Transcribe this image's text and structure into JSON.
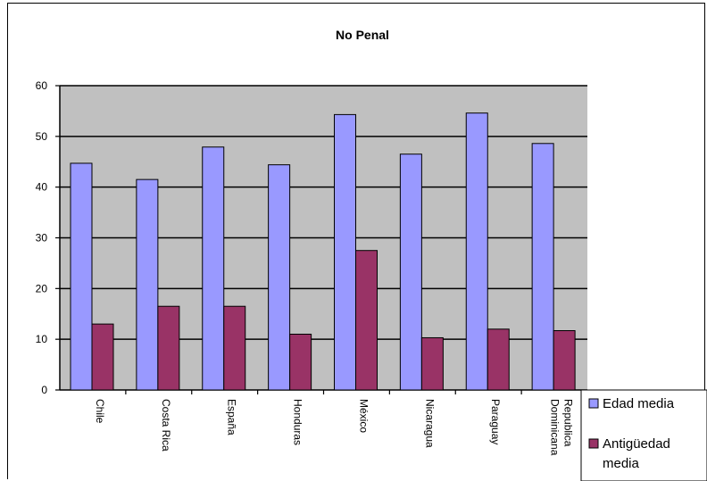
{
  "chart_data": {
    "type": "bar",
    "title": "No Penal",
    "xlabel": "",
    "ylabel": "",
    "categories": [
      "Chile",
      "Costa Rica",
      "España",
      "Honduras",
      "México",
      "Nicaragua",
      "Paraguay",
      "Republica Dominicana"
    ],
    "category_lines": [
      [
        "Chile"
      ],
      [
        "Costa Rica"
      ],
      [
        "España"
      ],
      [
        "Honduras"
      ],
      [
        "México"
      ],
      [
        "Nicaragua"
      ],
      [
        "Paraguay"
      ],
      [
        "Republica",
        "Dominicana"
      ]
    ],
    "series": [
      {
        "name": "Edad media",
        "color": "#9999ff",
        "values": [
          44.7,
          41.5,
          47.9,
          44.4,
          54.3,
          46.5,
          54.6,
          48.6
        ]
      },
      {
        "name": "Antigüedad media",
        "color": "#993366",
        "values": [
          13.0,
          16.5,
          16.5,
          11.0,
          27.5,
          10.3,
          12.0,
          11.7
        ]
      }
    ],
    "legend_lines": [
      [
        "Edad media"
      ],
      [
        "Antigüedad",
        "media"
      ]
    ],
    "ylim": [
      0,
      60
    ],
    "yticks": [
      0,
      10,
      20,
      30,
      40,
      50,
      60
    ],
    "grid": true,
    "legend_position": "bottom-right",
    "plot_background": "#c0c0c0"
  }
}
